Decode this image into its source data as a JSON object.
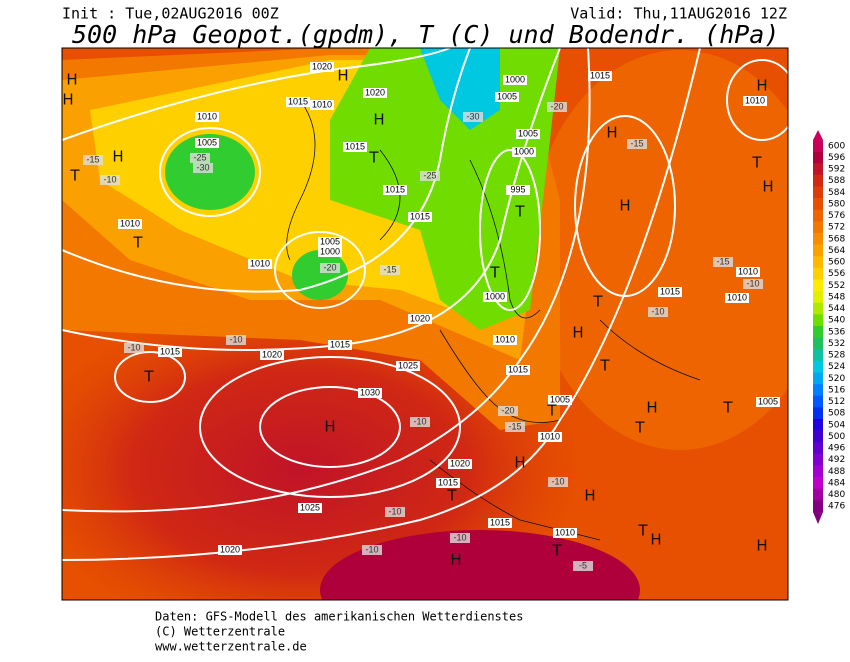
{
  "header": {
    "init": "Init : Tue,02AUG2016 00Z",
    "valid": "Valid: Thu,11AUG2016 12Z",
    "title": "500 hPa Geopot.(gpdm), T (C) und Bodendr. (hPa)"
  },
  "footer": {
    "line1": "Daten: GFS-Modell des amerikanischen Wetterdienstes",
    "line2": "(C) Wetterzentrale",
    "line3": "www.wetterzentrale.de"
  },
  "colorbar": {
    "values": [
      600,
      596,
      592,
      588,
      584,
      580,
      576,
      572,
      568,
      564,
      560,
      556,
      552,
      548,
      544,
      540,
      536,
      532,
      528,
      524,
      520,
      516,
      512,
      508,
      504,
      500,
      496,
      492,
      488,
      484,
      480,
      476
    ],
    "colors": [
      "#c8005a",
      "#b0003c",
      "#c01428",
      "#d02814",
      "#dc3c08",
      "#e65000",
      "#ee6400",
      "#f27800",
      "#f68c00",
      "#faa000",
      "#feb800",
      "#ffd000",
      "#ffea00",
      "#e0f000",
      "#b0e800",
      "#70dc00",
      "#30cc30",
      "#20c060",
      "#10c0a0",
      "#00c8e0",
      "#00a8f0",
      "#0080ff",
      "#0058ff",
      "#0030f0",
      "#2000e0",
      "#4000d0",
      "#6000d0",
      "#8000d0",
      "#a000d0",
      "#c000c8",
      "#a000a0",
      "#800080"
    ]
  },
  "map": {
    "pressure_labels": [
      1020,
      1015,
      1010,
      1020,
      1010,
      1005,
      1015,
      1015,
      1010,
      1010,
      1005,
      1000,
      1015,
      1020,
      1015,
      1020,
      1015,
      1025,
      1030,
      1020,
      1015,
      1025,
      1020,
      1015,
      1010,
      1005,
      1010,
      1015,
      1010,
      1000,
      995,
      1000,
      1005,
      1005,
      1000,
      1015,
      1010,
      1010,
      1010,
      1015,
      1005
    ],
    "markers": [
      "H",
      "H",
      "T",
      "H",
      "T",
      "T",
      "H",
      "T",
      "H",
      "T",
      "T",
      "H",
      "H",
      "T",
      "H",
      "T",
      "T",
      "H",
      "H",
      "T",
      "H",
      "T",
      "T",
      "H",
      "H",
      "T",
      "H",
      "T",
      "H",
      "T",
      "H",
      "H"
    ],
    "temperature_labels": [
      -15,
      -10,
      -25,
      -30,
      -15,
      -15,
      -10,
      -10,
      -10,
      -10,
      -15,
      -20,
      -25,
      -20,
      -30,
      -10,
      -20,
      -15,
      -10,
      -10,
      -10,
      -10,
      -5
    ]
  }
}
